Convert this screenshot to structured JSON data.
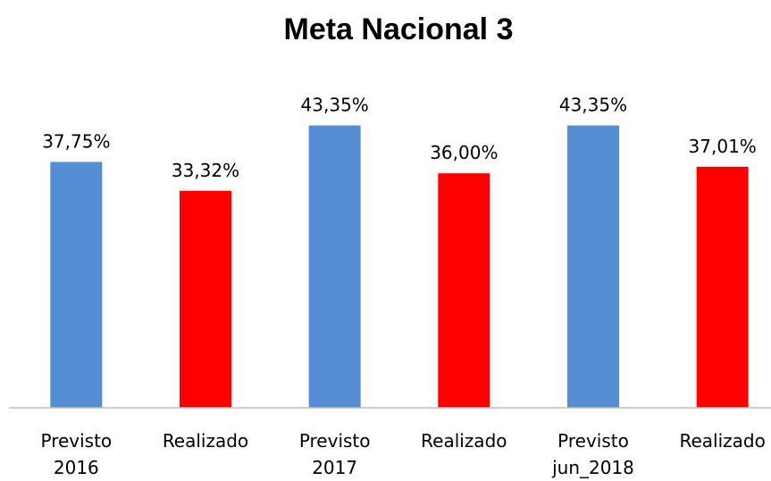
{
  "chart_data": {
    "type": "bar",
    "title": "Meta Nacional 3",
    "categories": [
      [
        "Previsto",
        "2016"
      ],
      [
        "Realizado"
      ],
      [
        "Previsto",
        "2017"
      ],
      [
        "Realizado"
      ],
      [
        "Previsto",
        "jun_2018"
      ],
      [
        "Realizado"
      ]
    ],
    "values": [
      37.75,
      33.32,
      43.35,
      36.0,
      43.35,
      37.01
    ],
    "value_labels": [
      "37,75%",
      "33,32%",
      "43,35%",
      "36,00%",
      "43,35%",
      "37,01%"
    ],
    "colors": [
      "#558ed5",
      "#ff0000",
      "#558ed5",
      "#ff0000",
      "#558ed5",
      "#ff0000"
    ],
    "ylim": [
      0,
      50
    ]
  }
}
